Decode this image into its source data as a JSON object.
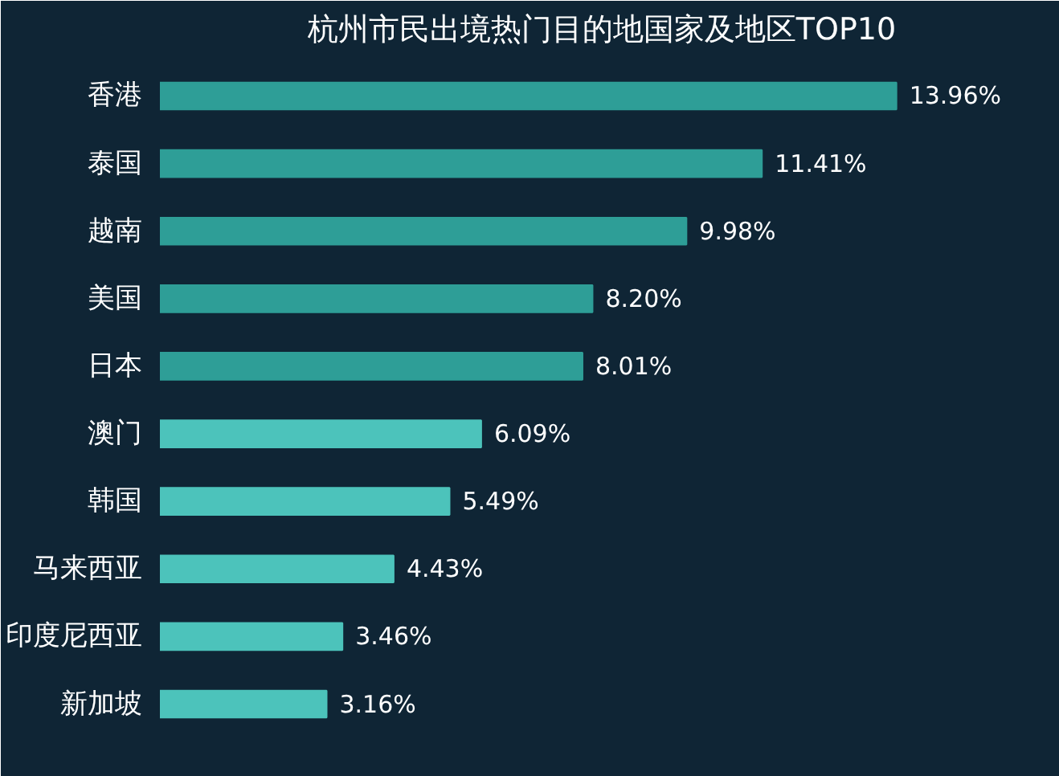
{
  "chart_data": {
    "type": "bar",
    "orientation": "horizontal",
    "title": "杭州市民出境热门目的地国家及地区TOP10",
    "categories": [
      "香港",
      "泰国",
      "越南",
      "美国",
      "日本",
      "澳门",
      "韩国",
      "马来西亚",
      "印度尼西亚",
      "新加坡"
    ],
    "values": [
      13.96,
      11.41,
      9.98,
      8.2,
      8.01,
      6.09,
      5.49,
      4.43,
      3.46,
      3.16
    ],
    "value_labels": [
      "13.96%",
      "11.41%",
      "9.98%",
      "8.20%",
      "8.01%",
      "6.09%",
      "5.49%",
      "4.43%",
      "3.46%",
      "3.16%"
    ],
    "colors": [
      "#2e9e97",
      "#2e9e97",
      "#2e9e97",
      "#2e9e97",
      "#2e9e97",
      "#4cc3bb",
      "#4cc3bb",
      "#4cc3bb",
      "#4cc3bb",
      "#4cc3bb"
    ],
    "grid": false
  }
}
